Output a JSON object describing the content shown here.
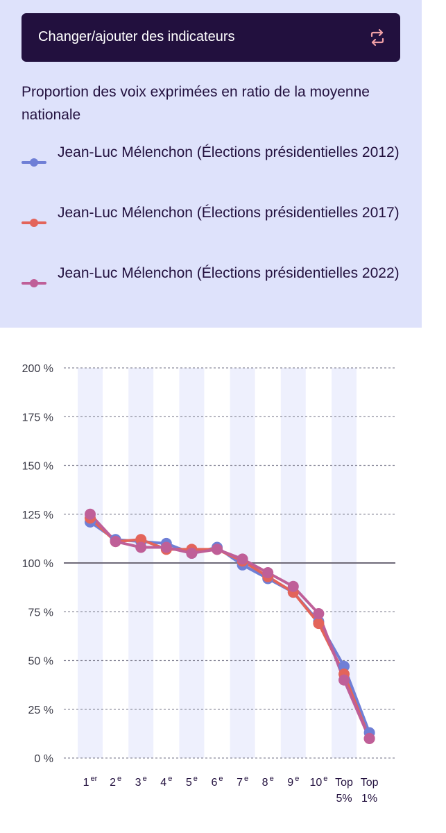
{
  "header": {
    "change_button_label": "Changer/ajouter des indicateurs",
    "swap_icon": "swap-arrows-icon",
    "indicator_title": "Proportion des voix exprimées en ratio de la moyenne nationale"
  },
  "colors": {
    "panel_background": "#dee2fb",
    "button_background": "#22103e",
    "icon_accent": "#f0a0a6",
    "band": "#eef0fd",
    "grid": "#8a8a9a",
    "reference_line": "#6e6a78",
    "text": "#22103e"
  },
  "legend": [
    {
      "label": "Jean-Luc Mélenchon (Élections présidentielles 2012)",
      "color": "#6f7fd6"
    },
    {
      "label": "Jean-Luc Mélenchon (Élections présidentielles 2017)",
      "color": "#e3645a"
    },
    {
      "label": "Jean-Luc Mélenchon (Élections présidentielles 2022)",
      "color": "#bf5f98"
    }
  ],
  "chart_data": {
    "type": "line",
    "categories": [
      {
        "main": "1",
        "sup": "er"
      },
      {
        "main": "2",
        "sup": "e"
      },
      {
        "main": "3",
        "sup": "e"
      },
      {
        "main": "4",
        "sup": "e"
      },
      {
        "main": "5",
        "sup": "e"
      },
      {
        "main": "6",
        "sup": "e"
      },
      {
        "main": "7",
        "sup": "e"
      },
      {
        "main": "8",
        "sup": "e"
      },
      {
        "main": "9",
        "sup": "e"
      },
      {
        "main": "10",
        "sup": "e"
      },
      {
        "main": "Top",
        "line2": "5%"
      },
      {
        "main": "Top",
        "line2": "1%"
      }
    ],
    "y_ticks": [
      "0 %",
      "25 %",
      "50 %",
      "75 %",
      "100 %",
      "125 %",
      "150 %",
      "175 %",
      "200 %"
    ],
    "ylim": [
      0,
      200
    ],
    "y_tick_values": [
      0,
      25,
      50,
      75,
      100,
      125,
      150,
      175,
      200
    ],
    "reference_value": 100,
    "alternating_bands": true,
    "grid": "dashed horizontal",
    "series": [
      {
        "name": "Jean-Luc Mélenchon (Élections présidentielles 2012)",
        "color": "#6f7fd6",
        "values": [
          121,
          112,
          111,
          110,
          105,
          108,
          99,
          92,
          85,
          70,
          47,
          13
        ]
      },
      {
        "name": "Jean-Luc Mélenchon (Élections présidentielles 2017)",
        "color": "#e3645a",
        "values": [
          123,
          111,
          112,
          107,
          107,
          107,
          101,
          93,
          85,
          69,
          43,
          10
        ]
      },
      {
        "name": "Jean-Luc Mélenchon (Élections présidentielles 2022)",
        "color": "#bf5f98",
        "values": [
          125,
          111,
          108,
          108,
          105,
          107,
          102,
          95,
          88,
          74,
          40,
          10
        ]
      }
    ]
  }
}
